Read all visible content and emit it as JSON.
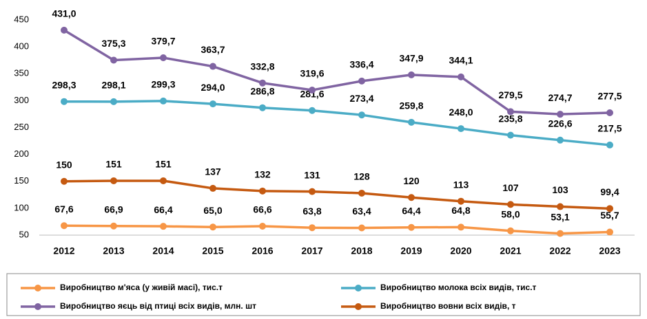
{
  "chart_data": {
    "type": "line",
    "categories": [
      "2012",
      "2013",
      "2014",
      "2015",
      "2016",
      "2017",
      "2018",
      "2019",
      "2020",
      "2021",
      "2022",
      "2023"
    ],
    "ylim": [
      50,
      450
    ],
    "yticks": [
      50,
      100,
      150,
      200,
      250,
      300,
      350,
      400,
      450
    ],
    "grid": false,
    "series": [
      {
        "name": "Виробництво м'яса (у живій масі), тис.т",
        "color": "#f79646",
        "values": [
          67.6,
          66.9,
          66.4,
          65.0,
          66.6,
          63.8,
          63.4,
          64.4,
          64.8,
          58.0,
          53.1,
          55.7
        ],
        "value_labels": [
          "67,6",
          "66,9",
          "66,4",
          "65,0",
          "66,6",
          "63,8",
          "63,4",
          "64,4",
          "64,8",
          "58,0",
          "53,1",
          "55,7"
        ]
      },
      {
        "name": "Виробництво молока всіх видів, тис.т",
        "color": "#4bacc6",
        "values": [
          298.3,
          298.1,
          299.3,
          294.0,
          286.8,
          281.6,
          273.4,
          259.8,
          248.0,
          235.8,
          226.6,
          217.5
        ],
        "value_labels": [
          "298,3",
          "298,1",
          "299,3",
          "294,0",
          "286,8",
          "281,6",
          "273,4",
          "259,8",
          "248,0",
          "235,8",
          "226,6",
          "217,5"
        ]
      },
      {
        "name": "Виробництво яєць від птиці всіх видів, млн. шт",
        "color": "#8064a2",
        "values": [
          431.0,
          375.3,
          379.7,
          363.7,
          332.8,
          319.6,
          336.4,
          347.9,
          344.1,
          279.5,
          274.7,
          277.5
        ],
        "value_labels": [
          "431,0",
          "375,3",
          "379,7",
          "363,7",
          "332,8",
          "319,6",
          "336,4",
          "347,9",
          "344,1",
          "279,5",
          "274,7",
          "277,5"
        ]
      },
      {
        "name": "Виробництво вовни всіх видів, т",
        "color": "#c55a11",
        "values": [
          150,
          151,
          151,
          137,
          132,
          131,
          128,
          120,
          113,
          107,
          103,
          99.4
        ],
        "value_labels": [
          "150",
          "151",
          "151",
          "137",
          "132",
          "131",
          "128",
          "120",
          "113",
          "107",
          "103",
          "99,4"
        ]
      }
    ],
    "legend": "bottom"
  }
}
